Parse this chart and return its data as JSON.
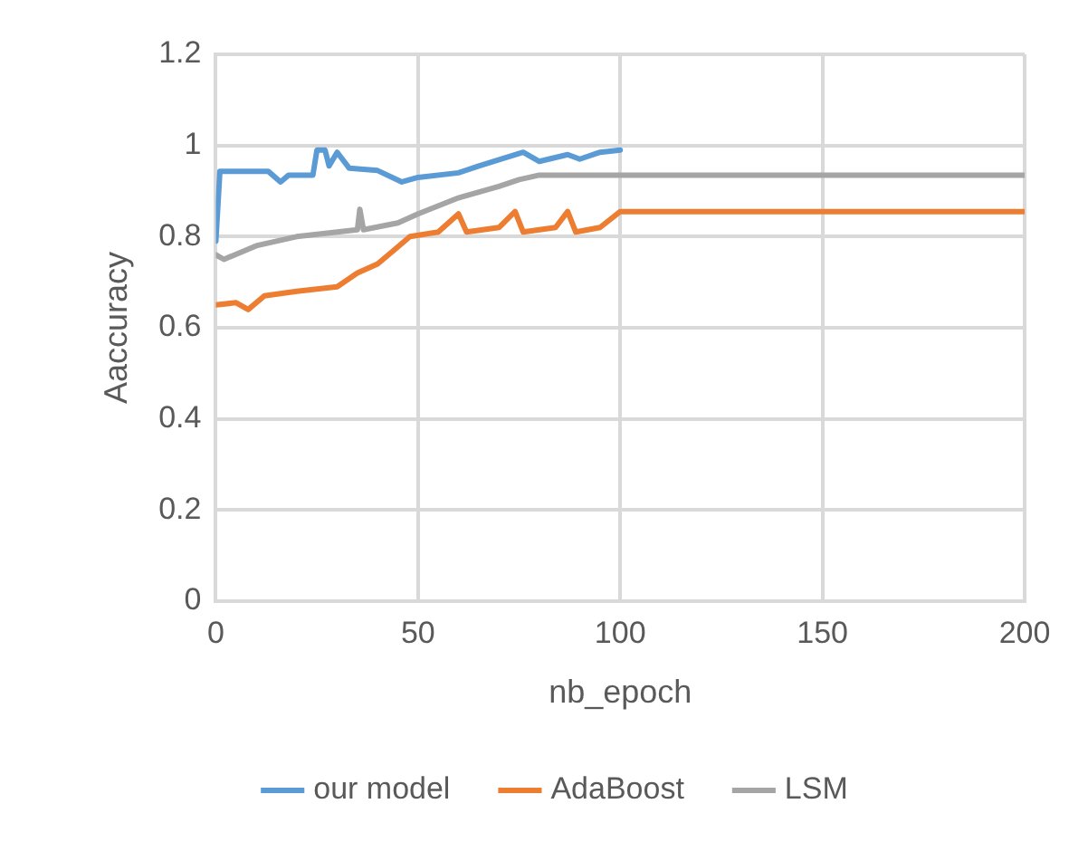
{
  "chart_data": {
    "type": "line",
    "xlabel": "nb_epoch",
    "ylabel": "Aaccuracy",
    "xlim": [
      0,
      200
    ],
    "xticks": [
      0,
      50,
      100,
      150,
      200
    ],
    "ylim": [
      0,
      1.2
    ],
    "yticks": [
      0,
      0.2,
      0.4,
      0.6,
      0.8,
      1,
      1.2
    ],
    "grid": true,
    "legend": "bottom",
    "marker": "none",
    "line_style": "solid",
    "series": [
      {
        "name": "our model",
        "color": "#5b9bd5",
        "x": [
          0,
          1,
          13,
          16,
          18,
          24,
          25,
          27,
          28,
          30,
          33,
          40,
          46,
          50,
          60,
          65,
          76,
          80,
          87,
          90,
          95,
          100
        ],
        "values": [
          0.79,
          0.943,
          0.943,
          0.92,
          0.935,
          0.935,
          0.99,
          0.99,
          0.955,
          0.985,
          0.95,
          0.945,
          0.92,
          0.93,
          0.94,
          0.955,
          0.985,
          0.965,
          0.98,
          0.97,
          0.985,
          0.99
        ]
      },
      {
        "name": "AdaBoost",
        "color": "#ed7d31",
        "x": [
          0,
          5,
          8,
          12,
          20,
          30,
          35,
          40,
          44,
          48,
          55,
          60,
          62,
          70,
          74,
          76,
          84,
          87,
          89,
          95,
          100,
          200
        ],
        "values": [
          0.65,
          0.655,
          0.64,
          0.67,
          0.68,
          0.69,
          0.72,
          0.74,
          0.77,
          0.8,
          0.81,
          0.85,
          0.81,
          0.82,
          0.855,
          0.81,
          0.82,
          0.855,
          0.81,
          0.82,
          0.855,
          0.855
        ]
      },
      {
        "name": "LSM",
        "color": "#a5a5a5",
        "x": [
          0,
          2,
          10,
          20,
          30,
          35,
          35.6,
          36.5,
          45,
          50,
          60,
          70,
          75,
          80,
          100,
          200
        ],
        "values": [
          0.76,
          0.75,
          0.78,
          0.8,
          0.81,
          0.815,
          0.86,
          0.815,
          0.83,
          0.85,
          0.885,
          0.91,
          0.925,
          0.935,
          0.935,
          0.935
        ]
      }
    ]
  }
}
